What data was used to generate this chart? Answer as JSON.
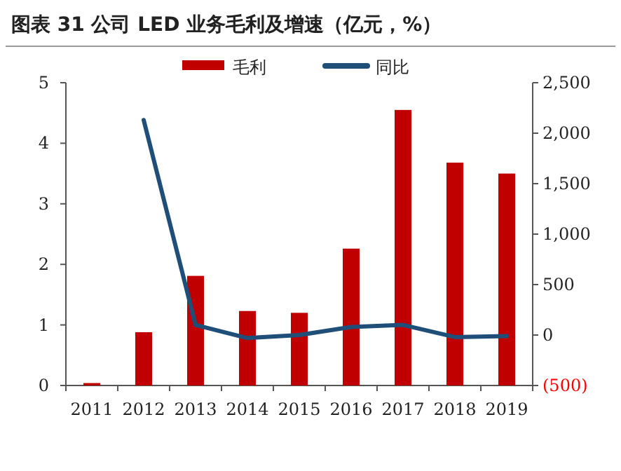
{
  "chart_data": {
    "type": "bar",
    "title": "图表 31   公司 LED 业务毛利及增速（亿元，%）",
    "categories": [
      "2011",
      "2012",
      "2013",
      "2014",
      "2015",
      "2016",
      "2017",
      "2018",
      "2019"
    ],
    "series": [
      {
        "name": "毛利",
        "color": "#c00000",
        "values": [
          0.04,
          0.88,
          1.81,
          1.23,
          1.2,
          2.26,
          4.55,
          3.68,
          3.5
        ]
      },
      {
        "name": "同比",
        "type": "line",
        "axis": "y2",
        "color": "#1f4e79",
        "values": [
          null,
          2130,
          100,
          -30,
          0,
          80,
          100,
          -20,
          -10
        ]
      }
    ],
    "ylim": [
      0,
      5
    ],
    "yticks": [
      0,
      1,
      2,
      3,
      4,
      5
    ],
    "y2lim": [
      -500,
      2500
    ],
    "y2ticks": [
      {
        "value": -500,
        "label": "(500)"
      },
      0,
      500,
      {
        "value": 1000,
        "label": "1,000"
      },
      {
        "value": 1500,
        "label": "1,500"
      },
      {
        "value": 2000,
        "label": "2,000"
      },
      {
        "value": 2500,
        "label": "2,500"
      }
    ],
    "legend": "top",
    "grid": false
  }
}
